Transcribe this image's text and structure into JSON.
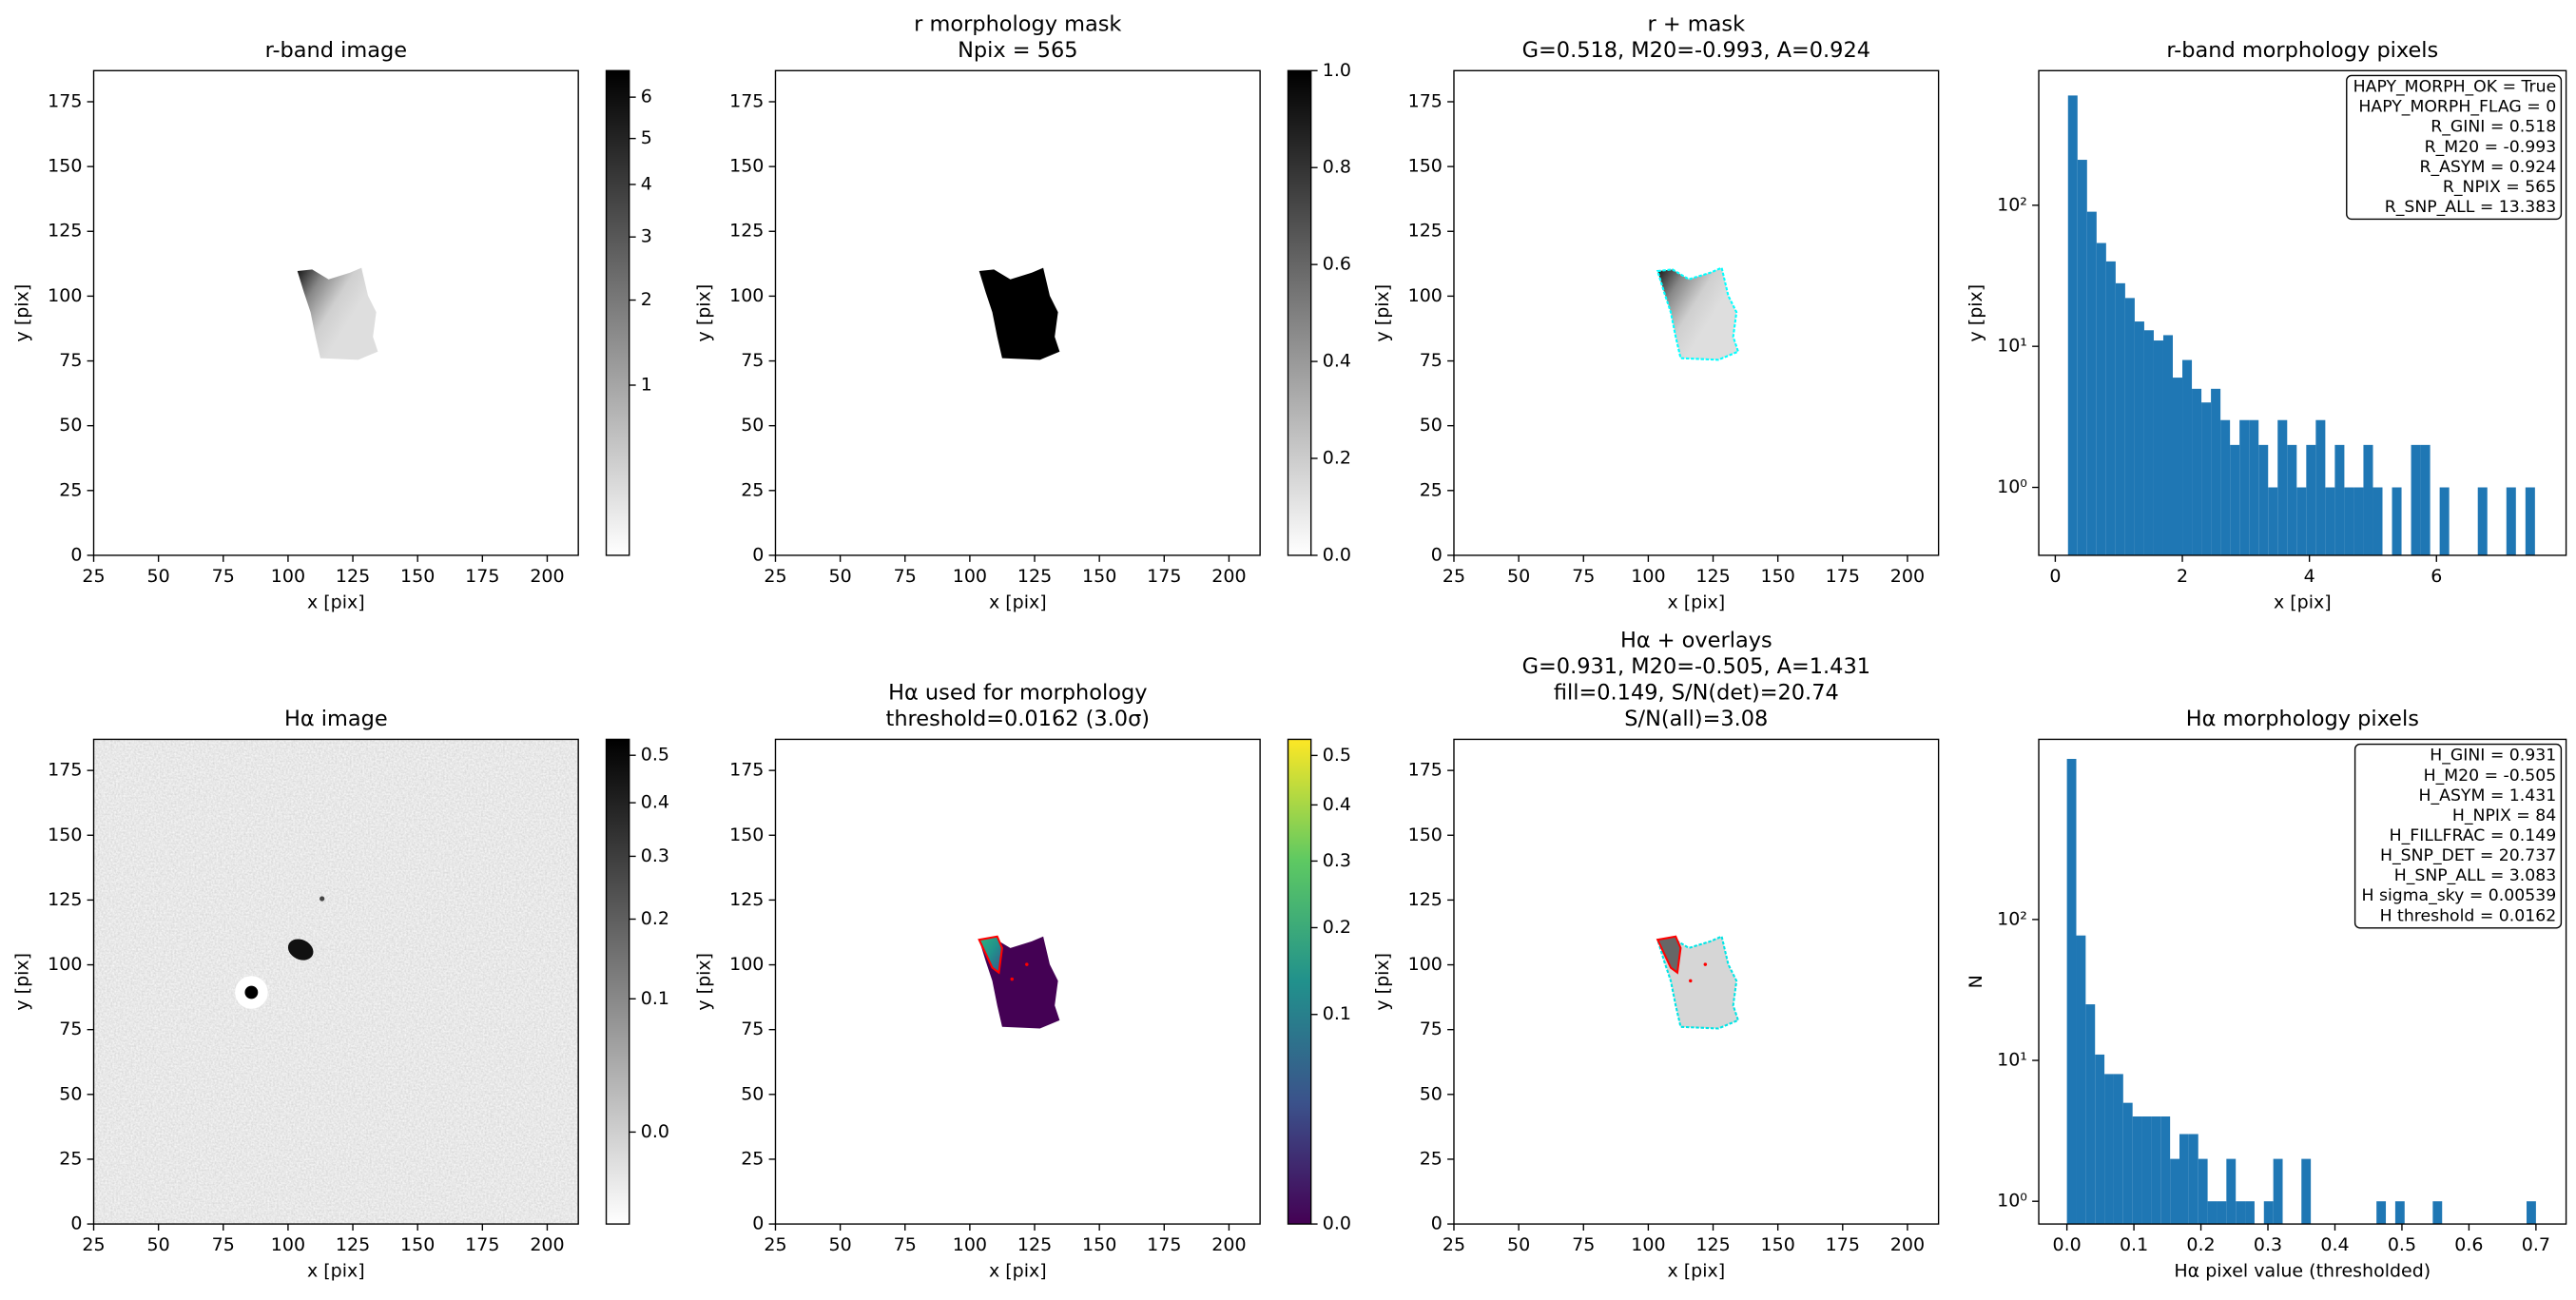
{
  "chart_data": [
    {
      "type": "image",
      "title": "r-band image",
      "xlabel": "x [pix]",
      "ylabel": "y [pix]",
      "xlim": [
        25,
        212
      ],
      "ylim": [
        0,
        187
      ],
      "xticks": [
        25,
        50,
        75,
        100,
        125,
        150,
        175,
        200
      ],
      "yticks": [
        0,
        25,
        50,
        75,
        100,
        125,
        150,
        175
      ],
      "colorbar": {
        "cmap": "gray_r",
        "scale": "sqrt",
        "clim": [
          0.2,
          6.69
        ],
        "ticks": [
          1,
          2,
          3,
          4,
          5,
          6
        ]
      }
    },
    {
      "type": "image",
      "title": [
        "r morphology mask",
        "Npix = 565"
      ],
      "xlabel": "x [pix]",
      "ylabel": "y [pix]",
      "xlim": [
        25,
        212
      ],
      "ylim": [
        0,
        187
      ],
      "xticks": [
        25,
        50,
        75,
        100,
        125,
        150,
        175,
        200
      ],
      "yticks": [
        0,
        25,
        50,
        75,
        100,
        125,
        150,
        175
      ],
      "colorbar": {
        "cmap": "gray_r",
        "scale": "linear",
        "clim": [
          0,
          1
        ],
        "ticks": [
          {
            "value": 0,
            "label": "0.0"
          },
          0.2,
          0.4,
          0.6,
          0.8,
          {
            "value": 1,
            "label": "1.0"
          }
        ]
      }
    },
    {
      "type": "image",
      "title": [
        "r + mask",
        "G=0.518, M20=-0.993, A=0.924"
      ],
      "xlabel": "x [pix]",
      "ylabel": "y [pix]",
      "xlim": [
        25,
        212
      ],
      "ylim": [
        0,
        187
      ],
      "xticks": [
        25,
        50,
        75,
        100,
        125,
        150,
        175,
        200
      ],
      "yticks": [
        0,
        25,
        50,
        75,
        100,
        125,
        150,
        175
      ]
    },
    {
      "type": "histogram",
      "title": "r-band morphology pixels",
      "xlabel": "x [pix]",
      "ylabel": "y [pix]",
      "color": "#1f77b4",
      "yscale": "log",
      "xlim": [
        -0.26,
        8.04
      ],
      "ylim": [
        0.33,
        900
      ],
      "xticks": [
        0,
        2,
        4,
        6
      ],
      "yticks": [
        {
          "value": 1,
          "label": "10⁰"
        },
        {
          "value": 10,
          "label": "10¹"
        },
        {
          "value": 100,
          "label": "10²"
        }
      ],
      "bins": [
        0.2,
        0.35,
        0.5,
        0.65,
        0.8,
        0.95,
        1.1,
        1.25,
        1.4,
        1.55,
        1.7,
        1.85,
        2.0,
        2.15,
        2.3,
        2.45,
        2.6,
        2.75,
        2.9,
        3.05,
        3.2,
        3.35,
        3.5,
        3.65,
        3.8,
        3.95,
        4.1,
        4.25,
        4.4,
        4.55,
        4.7,
        4.85,
        5.0,
        5.15,
        5.3,
        5.45,
        5.6,
        5.75,
        5.9,
        6.05,
        6.2,
        6.35,
        6.5,
        6.65,
        6.8,
        6.95,
        7.1,
        7.25,
        7.4,
        7.55
      ],
      "counts": [
        600,
        210,
        90,
        54,
        40,
        28,
        22,
        15,
        13,
        11,
        12,
        6,
        8,
        5,
        4,
        5,
        3,
        2,
        3,
        3,
        2,
        1,
        3,
        2,
        1,
        2,
        3,
        1,
        2,
        1,
        1,
        2,
        1,
        0,
        1,
        0,
        2,
        2,
        0,
        1,
        0,
        0,
        0,
        1,
        0,
        0,
        1,
        0,
        1
      ],
      "annotation": [
        "HAPY_MORPH_OK = True",
        "HAPY_MORPH_FLAG = 0",
        "R_GINI = 0.518",
        "R_M20 = -0.993",
        "R_ASYM = 0.924",
        "R_NPIX = 565",
        "R_SNP_ALL = 13.383"
      ]
    },
    {
      "type": "image",
      "title": "Hα image",
      "xlabel": "x [pix]",
      "ylabel": "y [pix]",
      "xlim": [
        25,
        212
      ],
      "ylim": [
        0,
        187
      ],
      "xticks": [
        25,
        50,
        75,
        100,
        125,
        150,
        175,
        200
      ],
      "yticks": [
        0,
        25,
        50,
        75,
        100,
        125,
        150,
        175
      ],
      "colorbar": {
        "cmap": "gray_r",
        "scale": "sqrt",
        "clim": [
          -0.02,
          0.536
        ],
        "ticks": [
          {
            "value": 0,
            "label": "0.0"
          },
          0.1,
          0.2,
          0.3,
          0.4,
          0.5
        ]
      }
    },
    {
      "type": "image",
      "title": [
        "Hα used for morphology",
        "threshold=0.0162 (3.0σ)"
      ],
      "xlabel": "x [pix]",
      "ylabel": "y [pix]",
      "xlim": [
        25,
        212
      ],
      "ylim": [
        0,
        187
      ],
      "xticks": [
        25,
        50,
        75,
        100,
        125,
        150,
        175,
        200
      ],
      "yticks": [
        0,
        25,
        50,
        75,
        100,
        125,
        150,
        175
      ],
      "colorbar": {
        "cmap": "viridis",
        "scale": "sqrt",
        "clim": [
          0,
          0.535
        ],
        "ticks": [
          {
            "value": 0,
            "label": "0.0"
          },
          0.1,
          0.2,
          0.3,
          0.4,
          0.5
        ]
      }
    },
    {
      "type": "image",
      "title": [
        "Hα + overlays",
        "G=0.931, M20=-0.505, A=1.431",
        "fill=0.149, S/N(det)=20.74",
        "S/N(all)=3.08"
      ],
      "xlabel": "x [pix]",
      "ylabel": "y [pix]",
      "xlim": [
        25,
        212
      ],
      "ylim": [
        0,
        187
      ],
      "xticks": [
        25,
        50,
        75,
        100,
        125,
        150,
        175,
        200
      ],
      "yticks": [
        0,
        25,
        50,
        75,
        100,
        125,
        150,
        175
      ]
    },
    {
      "type": "histogram",
      "title": "Hα morphology pixels",
      "xlabel": "Hα pixel value (thresholded)",
      "ylabel": "N",
      "color": "#1f77b4",
      "yscale": "log",
      "xlim": [
        -0.042,
        0.745
      ],
      "ylim": [
        0.69,
        1900
      ],
      "xticks": [
        {
          "value": 0,
          "label": "0.0"
        },
        0.1,
        0.2,
        0.3,
        0.4,
        0.5,
        0.6,
        0.7
      ],
      "yticks": [
        {
          "value": 1,
          "label": "10⁰"
        },
        {
          "value": 10,
          "label": "10¹"
        },
        {
          "value": 100,
          "label": "10²"
        }
      ],
      "bins": [
        0,
        0.014,
        0.028,
        0.042,
        0.056,
        0.07,
        0.084,
        0.098,
        0.112,
        0.126,
        0.14,
        0.154,
        0.168,
        0.182,
        0.196,
        0.21,
        0.224,
        0.238,
        0.252,
        0.266,
        0.28,
        0.294,
        0.308,
        0.322,
        0.336,
        0.35,
        0.364,
        0.378,
        0.392,
        0.406,
        0.42,
        0.434,
        0.448,
        0.462,
        0.476,
        0.49,
        0.504,
        0.518,
        0.532,
        0.546,
        0.56,
        0.574,
        0.588,
        0.602,
        0.616,
        0.63,
        0.644,
        0.658,
        0.672,
        0.686,
        0.7
      ],
      "counts": [
        1380,
        77,
        25,
        11,
        8,
        8,
        5,
        4,
        4,
        4,
        4,
        2,
        3,
        3,
        2,
        1,
        1,
        2,
        1,
        1,
        0,
        1,
        2,
        0,
        0,
        2,
        0,
        0,
        0,
        0,
        0,
        0,
        0,
        1,
        0,
        1,
        0,
        0,
        0,
        1,
        0,
        0,
        0,
        0,
        0,
        0,
        0,
        0,
        0,
        1
      ],
      "annotation": [
        "H_GINI = 0.931",
        "H_M20 = -0.505",
        "H_ASYM = 1.431",
        "H_NPIX = 84",
        "H_FILLFRAC = 0.149",
        "H_SNP_DET = 20.737",
        "H_SNP_ALL = 3.083",
        "H sigma_sky = 0.00539",
        "H threshold = 0.0162"
      ]
    }
  ]
}
